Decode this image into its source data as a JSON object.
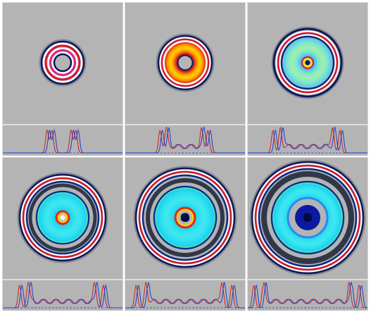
{
  "colors": {
    "background": "#b4b4b4",
    "frame": "#ffffff",
    "profile_red": "#d0201a",
    "profile_blue": "#1a3fd0",
    "baseline_blue": "#3b5bd6"
  },
  "panels": [
    {
      "id": "panel-1",
      "rings": [
        {
          "radius": 30,
          "width": 2.5,
          "color": "#0a1a5a"
        },
        {
          "radius": 27,
          "width": 2.5,
          "color": "#ffffff"
        },
        {
          "radius": 24,
          "width": 3,
          "color": "#d21a2a"
        },
        {
          "radius": 20.5,
          "width": 2.5,
          "color": "#ffffff"
        },
        {
          "radius": 17.5,
          "width": 3,
          "color": "#e0208a"
        },
        {
          "radius": 14.5,
          "width": 2.5,
          "color": "#ffffff"
        },
        {
          "radius": 12,
          "width": 2.5,
          "color": "#0a1a5a"
        }
      ],
      "disk": null,
      "core": null,
      "profile_peaks": [
        0.38,
        0.42,
        0.58,
        0.62
      ]
    },
    {
      "id": "panel-2",
      "rings": [
        {
          "radius": 38,
          "width": 2.5,
          "color": "#0a1a5a"
        },
        {
          "radius": 35.5,
          "width": 2,
          "color": "#ffffff"
        },
        {
          "radius": 33,
          "width": 2.5,
          "color": "#d21a2a"
        },
        {
          "radius": 30.5,
          "width": 2.5,
          "color": "#ffffff"
        },
        {
          "radius": 12.5,
          "width": 2,
          "color": "#d21a2a"
        },
        {
          "radius": 10.5,
          "width": 2,
          "color": "#0a1a5a"
        }
      ],
      "disk": {
        "outer": 29,
        "inner": 13,
        "colors": [
          "#e62a10",
          "#ff9a00",
          "#ffd200",
          "#ff9a00",
          "#e62a10"
        ]
      },
      "core": null,
      "profile_peaks": [
        0.3,
        0.35,
        0.65,
        0.7
      ]
    },
    {
      "id": "panel-3",
      "rings": [
        {
          "radius": 48,
          "width": 3,
          "color": "#0a1a5a"
        },
        {
          "radius": 44.5,
          "width": 2,
          "color": "#ffffff"
        },
        {
          "radius": 42,
          "width": 2.5,
          "color": "#d21a2a"
        },
        {
          "radius": 39.5,
          "width": 2,
          "color": "#ffffff"
        },
        {
          "radius": 37,
          "width": 2.5,
          "color": "#0a2a8a"
        },
        {
          "radius": 8,
          "width": 2,
          "color": "#d21a2a"
        },
        {
          "radius": 5.5,
          "width": 2,
          "color": "#ffee00"
        }
      ],
      "disk": {
        "outer": 35,
        "inner": 9,
        "colors": [
          "#49b4f0",
          "#7ee6d0",
          "#a0f0a8",
          "#7ee6d0",
          "#58c8ee"
        ]
      },
      "core": {
        "radius": 3.5,
        "color": "#0a1a5a"
      },
      "profile_peaks": [
        0.22,
        0.28,
        0.72,
        0.78
      ]
    },
    {
      "id": "panel-4",
      "rings": [
        {
          "radius": 61,
          "width": 2.5,
          "color": "#0a1a5a"
        },
        {
          "radius": 58.5,
          "width": 2,
          "color": "#ffffff"
        },
        {
          "radius": 56,
          "width": 2.5,
          "color": "#d21a2a"
        },
        {
          "radius": 53.5,
          "width": 2,
          "color": "#ffffff"
        },
        {
          "radius": 51,
          "width": 2.5,
          "color": "#0a2a8a"
        },
        {
          "radius": 46,
          "width": 5,
          "color": "#303848"
        },
        {
          "radius": 37,
          "width": 2.5,
          "color": "#0a2a8a"
        },
        {
          "radius": 35,
          "width": 2,
          "color": "#40e0c0"
        },
        {
          "radius": 9,
          "width": 3,
          "color": "#e62a10"
        },
        {
          "radius": 6,
          "width": 2,
          "color": "#ffd200"
        }
      ],
      "disk": {
        "outer": 34,
        "inner": 10,
        "colors": [
          "#1ad0f0",
          "#30e0f0",
          "#40e8f0",
          "#30e0f0",
          "#1ad0f0"
        ]
      },
      "core": {
        "radius": 3.5,
        "color": "#ffffff"
      },
      "profile_peaks": [
        0.15,
        0.22,
        0.78,
        0.85
      ]
    },
    {
      "id": "panel-5",
      "rings": [
        {
          "radius": 70,
          "width": 2.5,
          "color": "#0a1a5a"
        },
        {
          "radius": 67.5,
          "width": 2,
          "color": "#ffffff"
        },
        {
          "radius": 65,
          "width": 2.5,
          "color": "#d21a2a"
        },
        {
          "radius": 62.5,
          "width": 2,
          "color": "#ffffff"
        },
        {
          "radius": 60,
          "width": 2.5,
          "color": "#0a2a8a"
        },
        {
          "radius": 53,
          "width": 6,
          "color": "#303848"
        },
        {
          "radius": 44,
          "width": 2.5,
          "color": "#0a2a8a"
        },
        {
          "radius": 42,
          "width": 2,
          "color": "#40e0c0"
        },
        {
          "radius": 14,
          "width": 3,
          "color": "#e62a10"
        },
        {
          "radius": 11,
          "width": 2,
          "color": "#ffd200"
        }
      ],
      "disk": {
        "outer": 41,
        "inner": 13,
        "colors": [
          "#1ad0f0",
          "#30e0f0",
          "#40e8f0",
          "#30e0f0",
          "#1ad0f0"
        ]
      },
      "core": {
        "radius": 6,
        "color": "#1a2aa0"
      },
      "profile_peaks": [
        0.1,
        0.18,
        0.82,
        0.9
      ]
    },
    {
      "id": "panel-6",
      "rings": [
        {
          "radius": 79,
          "width": 2.5,
          "color": "#0a1a5a"
        },
        {
          "radius": 76.5,
          "width": 2,
          "color": "#ffffff"
        },
        {
          "radius": 74,
          "width": 2.5,
          "color": "#d21a2a"
        },
        {
          "radius": 71.5,
          "width": 2,
          "color": "#ffffff"
        },
        {
          "radius": 69,
          "width": 2.5,
          "color": "#0a2a8a"
        },
        {
          "radius": 62,
          "width": 8,
          "color": "#303848"
        },
        {
          "radius": 51,
          "width": 2.5,
          "color": "#0a2a8a"
        },
        {
          "radius": 49,
          "width": 2,
          "color": "#40e0c0"
        },
        {
          "radius": 28,
          "width": 3,
          "color": "#2a8af0"
        }
      ],
      "disk": {
        "outer": 48,
        "inner": 27,
        "colors": [
          "#1ad0f0",
          "#30e0f0",
          "#40e8f0",
          "#30e0f0",
          "#1ad0f0"
        ]
      },
      "core": {
        "radius": 18,
        "color": "#0a1aa0"
      },
      "profile_peaks": [
        0.06,
        0.14,
        0.86,
        0.94
      ]
    }
  ]
}
